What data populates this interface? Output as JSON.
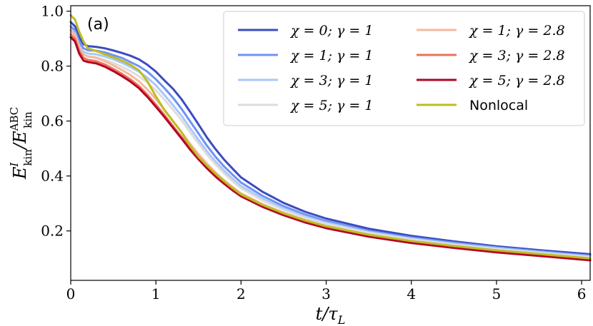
{
  "chart_data": {
    "type": "line",
    "panel_label": "(a)",
    "xlabel": "t/τ_L",
    "ylabel": "E^I_kin/E^ABC_kin",
    "xlim": [
      0,
      6.1
    ],
    "ylim": [
      0.02,
      1.02
    ],
    "xticks": [
      0,
      1,
      2,
      3,
      4,
      5,
      6
    ],
    "yticks": [
      0.2,
      0.4,
      0.6,
      0.8,
      1.0
    ],
    "ytick_labels": [
      "0.2",
      "0.4",
      "0.6",
      "0.8",
      "1.0"
    ],
    "grid": false,
    "legend_position": "top-right",
    "legend_columns": 2,
    "series": [
      {
        "name": "χ = 0; γ = 1",
        "color": "#3b4cc0",
        "x": [
          0,
          0.05,
          0.1,
          0.15,
          0.2,
          0.3,
          0.4,
          0.5,
          0.6,
          0.7,
          0.8,
          0.9,
          1.0,
          1.1,
          1.2,
          1.3,
          1.4,
          1.5,
          1.6,
          1.7,
          1.8,
          1.9,
          2.0,
          2.25,
          2.5,
          2.75,
          3.0,
          3.5,
          4.0,
          4.5,
          5.0,
          5.5,
          6.1
        ],
        "y": [
          0.96,
          0.945,
          0.905,
          0.88,
          0.873,
          0.87,
          0.865,
          0.857,
          0.848,
          0.838,
          0.825,
          0.805,
          0.78,
          0.748,
          0.718,
          0.68,
          0.635,
          0.588,
          0.54,
          0.498,
          0.46,
          0.427,
          0.395,
          0.343,
          0.302,
          0.27,
          0.245,
          0.208,
          0.182,
          0.162,
          0.144,
          0.13,
          0.115
        ]
      },
      {
        "name": "χ = 1; γ = 1",
        "color": "#6f92f3",
        "x": [
          0,
          0.05,
          0.1,
          0.15,
          0.2,
          0.3,
          0.4,
          0.5,
          0.6,
          0.7,
          0.8,
          0.9,
          1.0,
          1.1,
          1.2,
          1.3,
          1.4,
          1.5,
          1.6,
          1.7,
          1.8,
          1.9,
          2.0,
          2.25,
          2.5,
          2.75,
          3.0,
          3.5,
          4.0,
          4.5,
          5.0,
          5.5,
          6.1
        ],
        "y": [
          0.945,
          0.93,
          0.89,
          0.865,
          0.858,
          0.856,
          0.85,
          0.84,
          0.83,
          0.815,
          0.8,
          0.78,
          0.752,
          0.72,
          0.685,
          0.645,
          0.6,
          0.555,
          0.51,
          0.47,
          0.435,
          0.405,
          0.376,
          0.328,
          0.29,
          0.26,
          0.236,
          0.2,
          0.176,
          0.157,
          0.14,
          0.126,
          0.11
        ]
      },
      {
        "name": "χ = 3; γ = 1",
        "color": "#aac7fd",
        "x": [
          0,
          0.05,
          0.1,
          0.15,
          0.2,
          0.3,
          0.4,
          0.5,
          0.6,
          0.7,
          0.8,
          0.9,
          1.0,
          1.1,
          1.2,
          1.3,
          1.4,
          1.5,
          1.6,
          1.7,
          1.8,
          1.9,
          2.0,
          2.25,
          2.5,
          2.75,
          3.0,
          3.5,
          4.0,
          4.5,
          5.0,
          5.5,
          6.1
        ],
        "y": [
          0.935,
          0.92,
          0.875,
          0.852,
          0.846,
          0.843,
          0.835,
          0.825,
          0.812,
          0.797,
          0.78,
          0.758,
          0.73,
          0.695,
          0.658,
          0.62,
          0.575,
          0.532,
          0.49,
          0.453,
          0.42,
          0.39,
          0.363,
          0.318,
          0.282,
          0.253,
          0.23,
          0.196,
          0.172,
          0.153,
          0.137,
          0.123,
          0.107
        ]
      },
      {
        "name": "χ = 5; γ = 1",
        "color": "#dddddd",
        "x": [
          0,
          0.05,
          0.1,
          0.15,
          0.2,
          0.3,
          0.4,
          0.5,
          0.6,
          0.7,
          0.8,
          0.9,
          1.0,
          1.1,
          1.2,
          1.3,
          1.4,
          1.5,
          1.6,
          1.7,
          1.8,
          1.9,
          2.0,
          2.25,
          2.5,
          2.75,
          3.0,
          3.5,
          4.0,
          4.5,
          5.0,
          5.5,
          6.1
        ],
        "y": [
          0.925,
          0.91,
          0.865,
          0.842,
          0.836,
          0.832,
          0.823,
          0.812,
          0.798,
          0.782,
          0.763,
          0.74,
          0.712,
          0.678,
          0.642,
          0.604,
          0.56,
          0.519,
          0.478,
          0.442,
          0.41,
          0.381,
          0.355,
          0.311,
          0.276,
          0.248,
          0.226,
          0.193,
          0.169,
          0.15,
          0.134,
          0.12,
          0.104
        ]
      },
      {
        "name": "χ = 1; γ = 2.8",
        "color": "#f7b89c",
        "x": [
          0,
          0.05,
          0.1,
          0.15,
          0.2,
          0.3,
          0.4,
          0.5,
          0.6,
          0.7,
          0.8,
          0.9,
          1.0,
          1.1,
          1.2,
          1.3,
          1.4,
          1.5,
          1.6,
          1.7,
          1.8,
          1.9,
          2.0,
          2.25,
          2.5,
          2.75,
          3.0,
          3.5,
          4.0,
          4.5,
          5.0,
          5.5,
          6.1
        ],
        "y": [
          0.93,
          0.915,
          0.868,
          0.842,
          0.835,
          0.83,
          0.818,
          0.803,
          0.786,
          0.768,
          0.745,
          0.715,
          0.68,
          0.642,
          0.6,
          0.56,
          0.518,
          0.48,
          0.445,
          0.413,
          0.385,
          0.36,
          0.337,
          0.298,
          0.266,
          0.24,
          0.218,
          0.186,
          0.163,
          0.145,
          0.129,
          0.115,
          0.1
        ]
      },
      {
        "name": "χ = 3; γ = 2.8",
        "color": "#e7745b",
        "x": [
          0,
          0.05,
          0.1,
          0.15,
          0.2,
          0.3,
          0.4,
          0.5,
          0.6,
          0.7,
          0.8,
          0.9,
          1.0,
          1.1,
          1.2,
          1.3,
          1.4,
          1.5,
          1.6,
          1.7,
          1.8,
          1.9,
          2.0,
          2.25,
          2.5,
          2.75,
          3.0,
          3.5,
          4.0,
          4.5,
          5.0,
          5.5,
          6.1
        ],
        "y": [
          0.915,
          0.9,
          0.855,
          0.83,
          0.823,
          0.818,
          0.806,
          0.79,
          0.772,
          0.752,
          0.728,
          0.696,
          0.66,
          0.622,
          0.582,
          0.543,
          0.502,
          0.466,
          0.432,
          0.402,
          0.375,
          0.351,
          0.329,
          0.291,
          0.26,
          0.234,
          0.213,
          0.182,
          0.159,
          0.141,
          0.125,
          0.112,
          0.096
        ]
      },
      {
        "name": "χ = 5; γ = 2.8",
        "color": "#b40426",
        "x": [
          0,
          0.05,
          0.1,
          0.15,
          0.2,
          0.3,
          0.4,
          0.5,
          0.6,
          0.7,
          0.8,
          0.9,
          1.0,
          1.1,
          1.2,
          1.3,
          1.4,
          1.5,
          1.6,
          1.7,
          1.8,
          1.9,
          2.0,
          2.25,
          2.5,
          2.75,
          3.0,
          3.5,
          4.0,
          4.5,
          5.0,
          5.5,
          6.1
        ],
        "y": [
          0.905,
          0.89,
          0.845,
          0.82,
          0.815,
          0.81,
          0.798,
          0.782,
          0.764,
          0.744,
          0.72,
          0.688,
          0.652,
          0.615,
          0.576,
          0.537,
          0.497,
          0.461,
          0.428,
          0.398,
          0.372,
          0.348,
          0.326,
          0.288,
          0.257,
          0.231,
          0.21,
          0.179,
          0.156,
          0.138,
          0.122,
          0.109,
          0.093
        ]
      },
      {
        "name": "Nonlocal",
        "color": "#bcbd22",
        "x": [
          0,
          0.05,
          0.1,
          0.15,
          0.2,
          0.3,
          0.4,
          0.5,
          0.6,
          0.7,
          0.8,
          0.9,
          1.0,
          1.1,
          1.2,
          1.3,
          1.4,
          1.5,
          1.6,
          1.7,
          1.8,
          1.9,
          2.0,
          2.25,
          2.5,
          2.75,
          3.0,
          3.5,
          4.0,
          4.5,
          5.0,
          5.5,
          6.1
        ],
        "y": [
          0.985,
          0.97,
          0.925,
          0.89,
          0.865,
          0.855,
          0.843,
          0.832,
          0.82,
          0.805,
          0.785,
          0.745,
          0.69,
          0.64,
          0.6,
          0.56,
          0.51,
          0.47,
          0.438,
          0.408,
          0.381,
          0.356,
          0.333,
          0.295,
          0.264,
          0.238,
          0.217,
          0.186,
          0.163,
          0.145,
          0.129,
          0.116,
          0.1
        ]
      }
    ]
  }
}
